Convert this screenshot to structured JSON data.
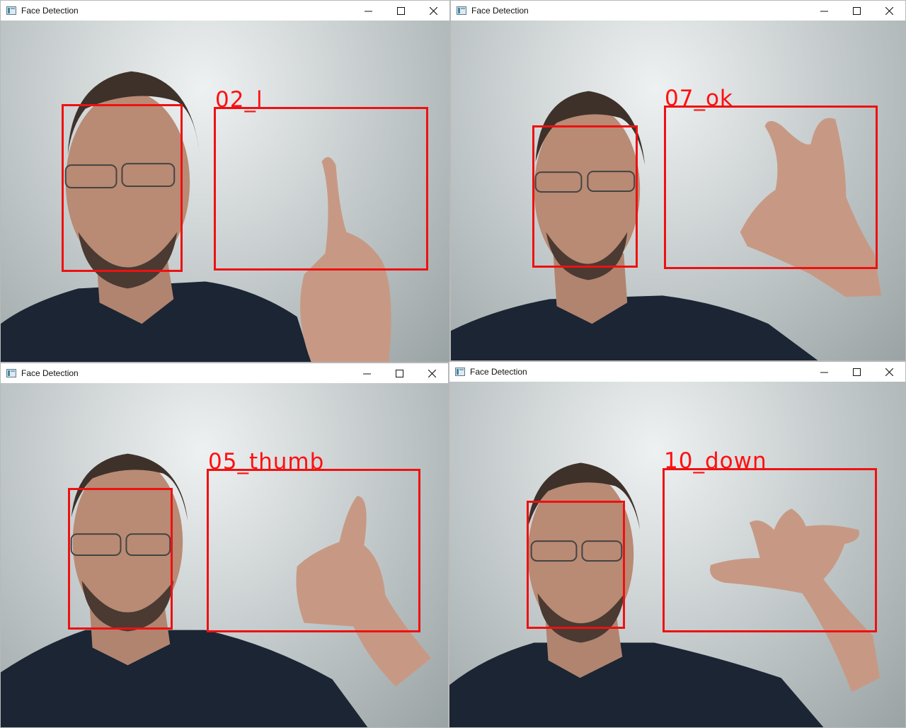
{
  "windows": [
    {
      "title": "Face Detection",
      "label": "02_l"
    },
    {
      "title": "Face Detection",
      "label": "07_ok"
    },
    {
      "title": "Face Detection",
      "label": "05_thumb"
    },
    {
      "title": "Face Detection",
      "label": "10_down"
    }
  ],
  "colors": {
    "box": "#ee1111",
    "label": "#ff1010",
    "shirt": "#1b2533",
    "skin": "#b98a74",
    "wall": "#c9cfd0"
  },
  "icons": {
    "app": "app-window-icon",
    "minimize": "minimize-icon",
    "maximize": "maximize-icon",
    "close": "close-icon"
  }
}
